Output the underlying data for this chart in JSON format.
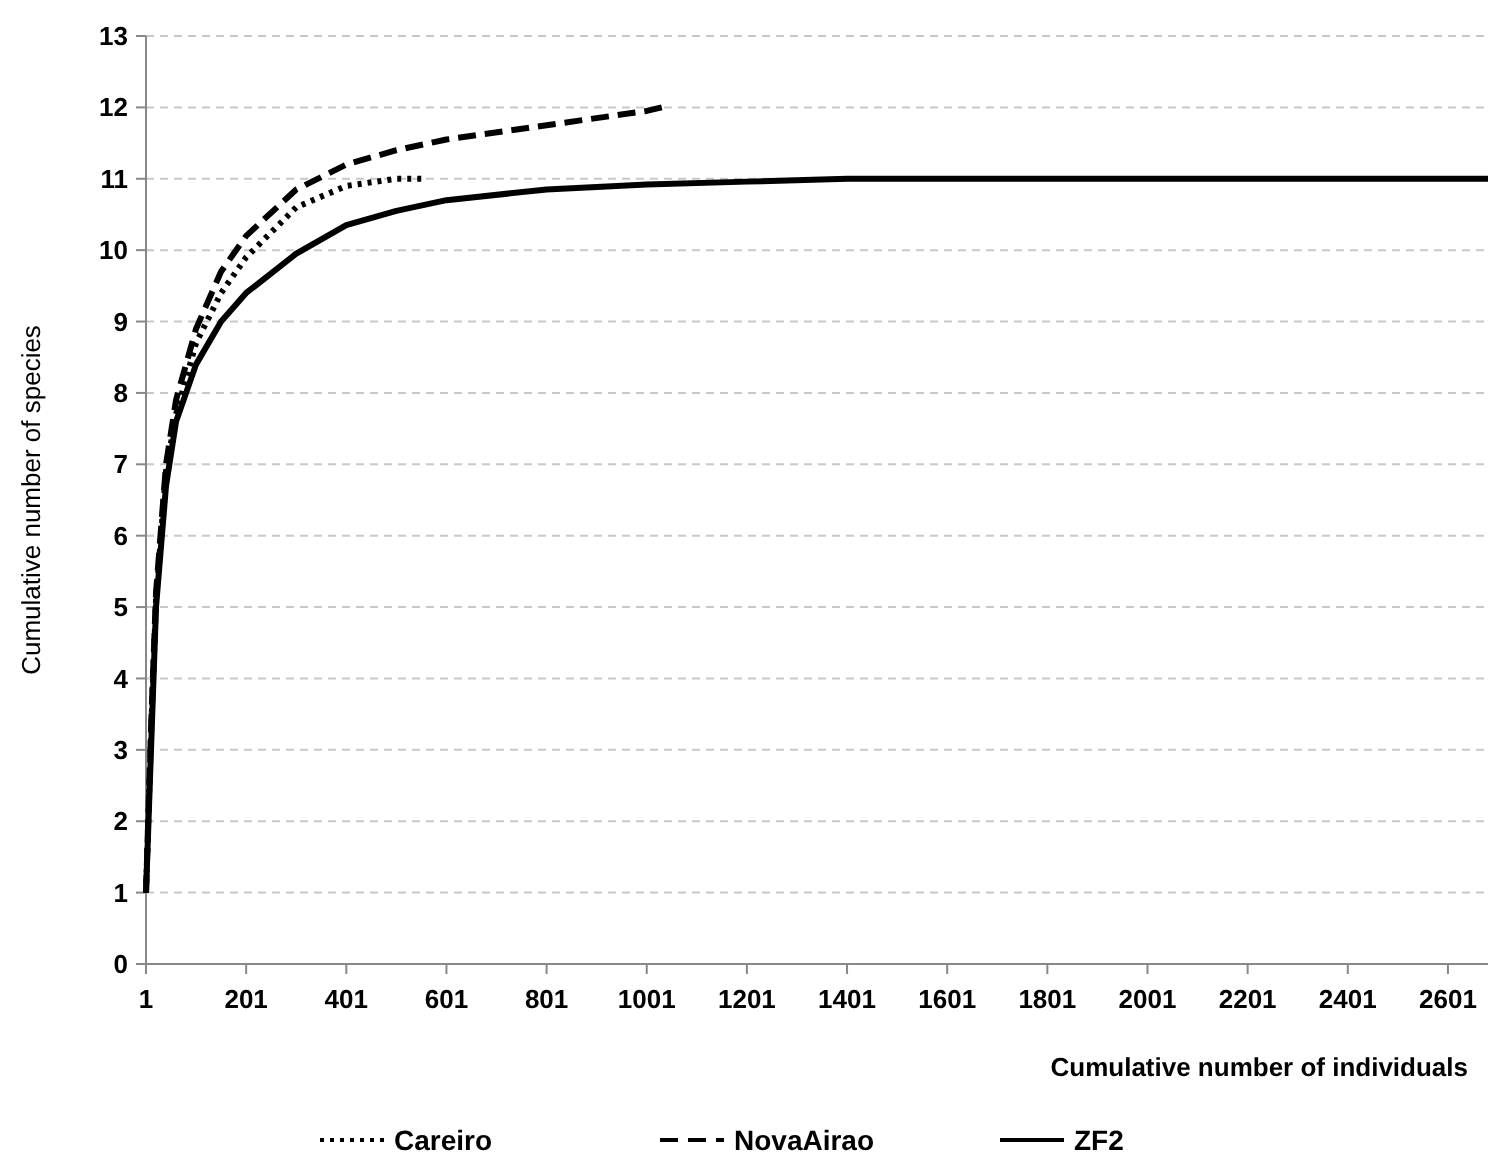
{
  "chart_data": {
    "type": "line",
    "xlabel": "Cumulative number of individuals",
    "ylabel": "Cumulative number of species",
    "xlim": [
      1,
      2681
    ],
    "xticks": [
      1,
      201,
      401,
      601,
      801,
      1001,
      1201,
      1401,
      1601,
      1801,
      2001,
      2201,
      2401,
      2601
    ],
    "ylim": [
      0,
      13
    ],
    "yticks": [
      0,
      1,
      2,
      3,
      4,
      5,
      6,
      7,
      8,
      9,
      10,
      11,
      12,
      13
    ],
    "grid": "y",
    "legend": "bottom",
    "series": [
      {
        "name": "Careiro",
        "color": "#000000",
        "line_style": "dotted",
        "x": [
          1,
          11,
          21,
          41,
          61,
          101,
          151,
          201,
          301,
          401,
          501,
          551
        ],
        "values": [
          1,
          3.2,
          5.1,
          6.9,
          7.7,
          8.7,
          9.4,
          9.9,
          10.6,
          10.9,
          11,
          11
        ]
      },
      {
        "name": "NovaAirao",
        "color": "#000000",
        "line_style": "dashed",
        "x": [
          1,
          11,
          21,
          41,
          61,
          101,
          151,
          201,
          301,
          401,
          501,
          601,
          801,
          1001,
          1031
        ],
        "values": [
          1,
          3.3,
          5.2,
          7,
          7.9,
          8.9,
          9.7,
          10.2,
          10.85,
          11.2,
          11.4,
          11.55,
          11.75,
          11.95,
          12
        ]
      },
      {
        "name": "ZF2",
        "color": "#000000",
        "line_style": "solid",
        "x": [
          1,
          11,
          21,
          41,
          61,
          101,
          151,
          201,
          301,
          401,
          501,
          601,
          801,
          1001,
          1201,
          1401,
          2681
        ],
        "values": [
          1,
          3,
          5,
          6.7,
          7.6,
          8.4,
          9,
          9.4,
          9.95,
          10.35,
          10.55,
          10.7,
          10.85,
          10.92,
          10.96,
          11,
          11
        ]
      }
    ]
  }
}
